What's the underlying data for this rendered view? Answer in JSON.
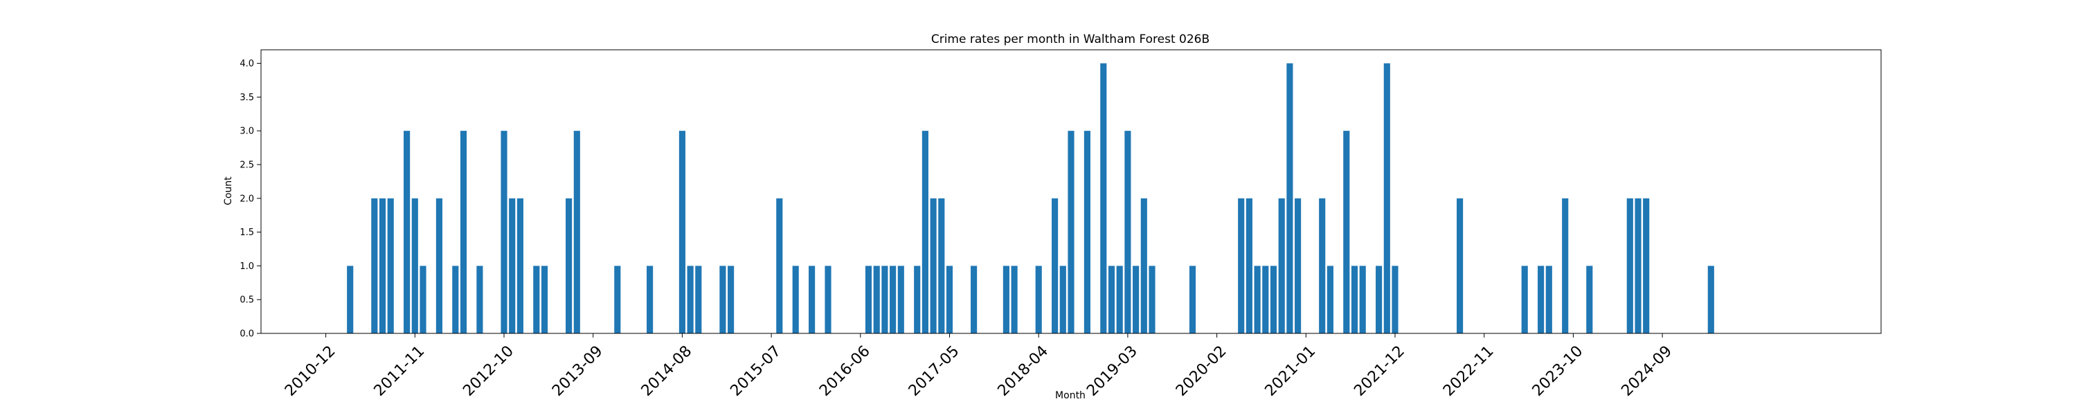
{
  "chart_data": {
    "type": "bar",
    "title": "Crime rates per month in Waltham Forest 026B",
    "xlabel": "Month",
    "ylabel": "Count",
    "ylim": [
      0,
      4.2
    ],
    "yticks": [
      0.0,
      0.5,
      1.0,
      1.5,
      2.0,
      2.5,
      3.0,
      3.5,
      4.0
    ],
    "xlim": [
      "2010-04",
      "2026-12"
    ],
    "xticks": [
      "2010-12",
      "2011-11",
      "2012-10",
      "2013-09",
      "2014-08",
      "2015-07",
      "2016-06",
      "2017-05",
      "2018-04",
      "2019-03",
      "2020-02",
      "2021-01",
      "2021-12",
      "2022-11",
      "2023-10",
      "2024-09"
    ],
    "bar_color": "#1f77b4",
    "grid": false,
    "x": [
      "2011-03",
      "2011-06",
      "2011-07",
      "2011-08",
      "2011-10",
      "2011-11",
      "2011-12",
      "2012-02",
      "2012-04",
      "2012-05",
      "2012-07",
      "2012-10",
      "2012-11",
      "2012-12",
      "2013-02",
      "2013-03",
      "2013-06",
      "2013-07",
      "2013-12",
      "2014-04",
      "2014-08",
      "2014-09",
      "2014-10",
      "2015-01",
      "2015-02",
      "2015-08",
      "2015-10",
      "2015-12",
      "2016-02",
      "2016-07",
      "2016-08",
      "2016-09",
      "2016-10",
      "2016-11",
      "2017-01",
      "2017-02",
      "2017-03",
      "2017-04",
      "2017-05",
      "2017-08",
      "2017-12",
      "2018-01",
      "2018-04",
      "2018-06",
      "2018-07",
      "2018-08",
      "2018-10",
      "2018-12",
      "2019-01",
      "2019-02",
      "2019-03",
      "2019-04",
      "2019-05",
      "2019-06",
      "2019-11",
      "2020-05",
      "2020-06",
      "2020-07",
      "2020-08",
      "2020-09",
      "2020-10",
      "2020-11",
      "2020-12",
      "2021-03",
      "2021-04",
      "2021-06",
      "2021-07",
      "2021-08",
      "2021-10",
      "2021-11",
      "2021-12",
      "2022-08",
      "2023-04",
      "2023-06",
      "2023-07",
      "2023-09",
      "2023-12",
      "2024-05",
      "2024-06",
      "2024-07",
      "2025-03"
    ],
    "values": [
      1,
      2,
      2,
      2,
      3,
      2,
      1,
      2,
      1,
      3,
      1,
      3,
      2,
      2,
      1,
      1,
      2,
      3,
      1,
      1,
      3,
      1,
      1,
      1,
      1,
      2,
      1,
      1,
      1,
      1,
      1,
      1,
      1,
      1,
      1,
      3,
      2,
      2,
      1,
      1,
      1,
      1,
      1,
      2,
      1,
      3,
      3,
      4,
      1,
      1,
      3,
      1,
      2,
      1,
      1,
      2,
      2,
      1,
      1,
      1,
      2,
      4,
      2,
      2,
      1,
      3,
      1,
      1,
      1,
      4,
      1,
      2,
      1,
      1,
      1,
      2,
      1,
      2,
      2,
      2,
      1
    ]
  }
}
